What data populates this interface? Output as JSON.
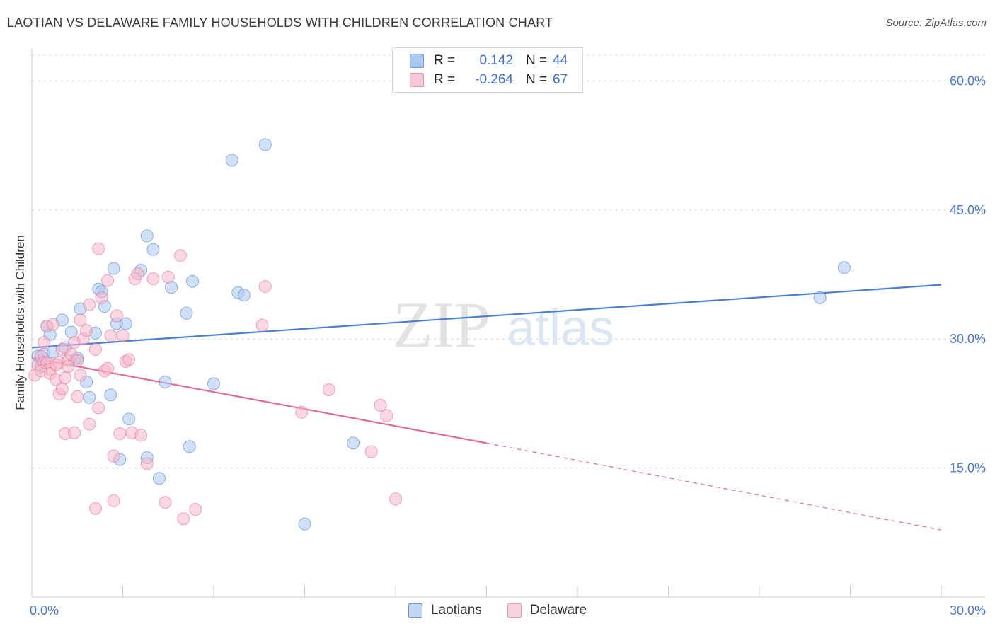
{
  "header": {
    "title": "LAOTIAN VS DELAWARE FAMILY HOUSEHOLDS WITH CHILDREN CORRELATION CHART",
    "source": "Source: ZipAtlas.com"
  },
  "legend": {
    "rows": [
      {
        "r_label": "R =",
        "r_value": "0.142",
        "n_label": "N =",
        "n_value": "44",
        "color": "#aac8f0"
      },
      {
        "r_label": "R =",
        "r_value": "-0.264",
        "n_label": "N =",
        "n_value": "67",
        "color": "#f6b8c9"
      }
    ]
  },
  "bottom_legend": {
    "items": [
      {
        "label": "Laotians",
        "color": "#aac8f0"
      },
      {
        "label": "Delaware",
        "color": "#f6b8c9"
      }
    ]
  },
  "watermark": {
    "zip": "ZIP",
    "atlas": "atlas"
  },
  "chart_data": {
    "type": "scatter",
    "title": "LAOTIAN VS DELAWARE FAMILY HOUSEHOLDS WITH CHILDREN CORRELATION CHART",
    "xlabel": "",
    "ylabel": "Family Households with Children",
    "xlim": [
      0,
      30
    ],
    "ylim": [
      0,
      63
    ],
    "x_tick_labels": [
      "0.0%",
      "30.0%"
    ],
    "y_ticks": [
      15,
      30,
      45,
      60
    ],
    "y_tick_labels": [
      "15.0%",
      "30.0%",
      "45.0%",
      "60.0%"
    ],
    "grid": true,
    "legend_position": "top-center",
    "series": [
      {
        "name": "Laotians",
        "color": "#4a7fd4",
        "fill": "#aac8f0",
        "trend": {
          "x": [
            0,
            30
          ],
          "y": [
            29.0,
            36.3
          ],
          "style": "solid"
        },
        "points": [
          [
            0.2,
            28.0
          ],
          [
            0.3,
            27.5
          ],
          [
            0.3,
            26.8
          ],
          [
            0.4,
            28.2
          ],
          [
            0.5,
            31.5
          ],
          [
            0.6,
            30.5
          ],
          [
            0.7,
            28.5
          ],
          [
            1.0,
            32.2
          ],
          [
            1.1,
            29.0
          ],
          [
            1.3,
            30.8
          ],
          [
            1.4,
            27.5
          ],
          [
            1.5,
            27.8
          ],
          [
            1.6,
            33.5
          ],
          [
            1.8,
            25.0
          ],
          [
            1.9,
            23.2
          ],
          [
            2.1,
            30.7
          ],
          [
            2.2,
            35.8
          ],
          [
            2.3,
            35.5
          ],
          [
            2.4,
            33.8
          ],
          [
            2.6,
            23.5
          ],
          [
            2.7,
            38.2
          ],
          [
            2.8,
            31.8
          ],
          [
            2.9,
            16.0
          ],
          [
            3.1,
            31.8
          ],
          [
            3.2,
            20.7
          ],
          [
            3.6,
            38.0
          ],
          [
            3.8,
            42.0
          ],
          [
            3.8,
            16.2
          ],
          [
            4.0,
            40.4
          ],
          [
            4.2,
            13.8
          ],
          [
            4.4,
            25.0
          ],
          [
            4.6,
            36.0
          ],
          [
            5.1,
            33.0
          ],
          [
            5.2,
            17.5
          ],
          [
            5.3,
            36.7
          ],
          [
            6.0,
            24.8
          ],
          [
            6.6,
            50.8
          ],
          [
            6.8,
            35.4
          ],
          [
            7.0,
            35.1
          ],
          [
            7.7,
            52.6
          ],
          [
            9.0,
            8.5
          ],
          [
            10.6,
            17.9
          ],
          [
            26.0,
            34.8
          ],
          [
            26.8,
            38.3
          ]
        ]
      },
      {
        "name": "Delaware",
        "color": "#e46a95",
        "fill": "#f6b8c9",
        "trend": {
          "x": [
            0,
            15
          ],
          "y": [
            27.8,
            17.9
          ],
          "style": "solid",
          "dashed_to": [
            30,
            7.8
          ]
        },
        "points": [
          [
            0.1,
            25.8
          ],
          [
            0.2,
            27.0
          ],
          [
            0.3,
            28.0
          ],
          [
            0.4,
            27.3
          ],
          [
            0.4,
            29.6
          ],
          [
            0.5,
            27.2
          ],
          [
            0.5,
            31.5
          ],
          [
            0.6,
            26.5
          ],
          [
            0.6,
            26.0
          ],
          [
            0.7,
            31.7
          ],
          [
            0.8,
            25.3
          ],
          [
            0.9,
            27.3
          ],
          [
            0.9,
            23.6
          ],
          [
            1.0,
            28.8
          ],
          [
            1.1,
            19.0
          ],
          [
            1.1,
            25.5
          ],
          [
            1.2,
            27.5
          ],
          [
            1.3,
            28.2
          ],
          [
            1.4,
            29.6
          ],
          [
            1.4,
            19.1
          ],
          [
            1.5,
            27.5
          ],
          [
            1.5,
            23.3
          ],
          [
            1.6,
            25.8
          ],
          [
            1.6,
            32.2
          ],
          [
            1.7,
            30.0
          ],
          [
            1.8,
            31.0
          ],
          [
            1.9,
            34.0
          ],
          [
            1.9,
            20.1
          ],
          [
            2.1,
            28.8
          ],
          [
            2.2,
            40.5
          ],
          [
            2.2,
            22.0
          ],
          [
            2.3,
            34.8
          ],
          [
            2.4,
            26.3
          ],
          [
            2.5,
            36.8
          ],
          [
            2.5,
            26.6
          ],
          [
            2.6,
            30.4
          ],
          [
            2.7,
            16.4
          ],
          [
            2.7,
            11.2
          ],
          [
            2.8,
            32.7
          ],
          [
            2.9,
            19.0
          ],
          [
            3.0,
            30.4
          ],
          [
            3.1,
            27.4
          ],
          [
            3.2,
            27.6
          ],
          [
            3.3,
            19.1
          ],
          [
            3.4,
            37.0
          ],
          [
            3.5,
            37.6
          ],
          [
            3.6,
            18.8
          ],
          [
            3.8,
            15.5
          ],
          [
            4.0,
            37.0
          ],
          [
            4.4,
            11.0
          ],
          [
            4.5,
            37.2
          ],
          [
            4.9,
            39.7
          ],
          [
            5.0,
            9.1
          ],
          [
            5.4,
            10.2
          ],
          [
            7.6,
            31.6
          ],
          [
            7.7,
            36.1
          ],
          [
            8.9,
            21.5
          ],
          [
            9.8,
            24.1
          ],
          [
            11.2,
            16.9
          ],
          [
            11.5,
            22.3
          ],
          [
            11.7,
            21.1
          ],
          [
            12.0,
            11.4
          ],
          [
            2.1,
            10.3
          ],
          [
            1.0,
            24.2
          ],
          [
            0.8,
            27.0
          ],
          [
            1.2,
            26.8
          ],
          [
            0.3,
            26.3
          ]
        ]
      }
    ]
  }
}
